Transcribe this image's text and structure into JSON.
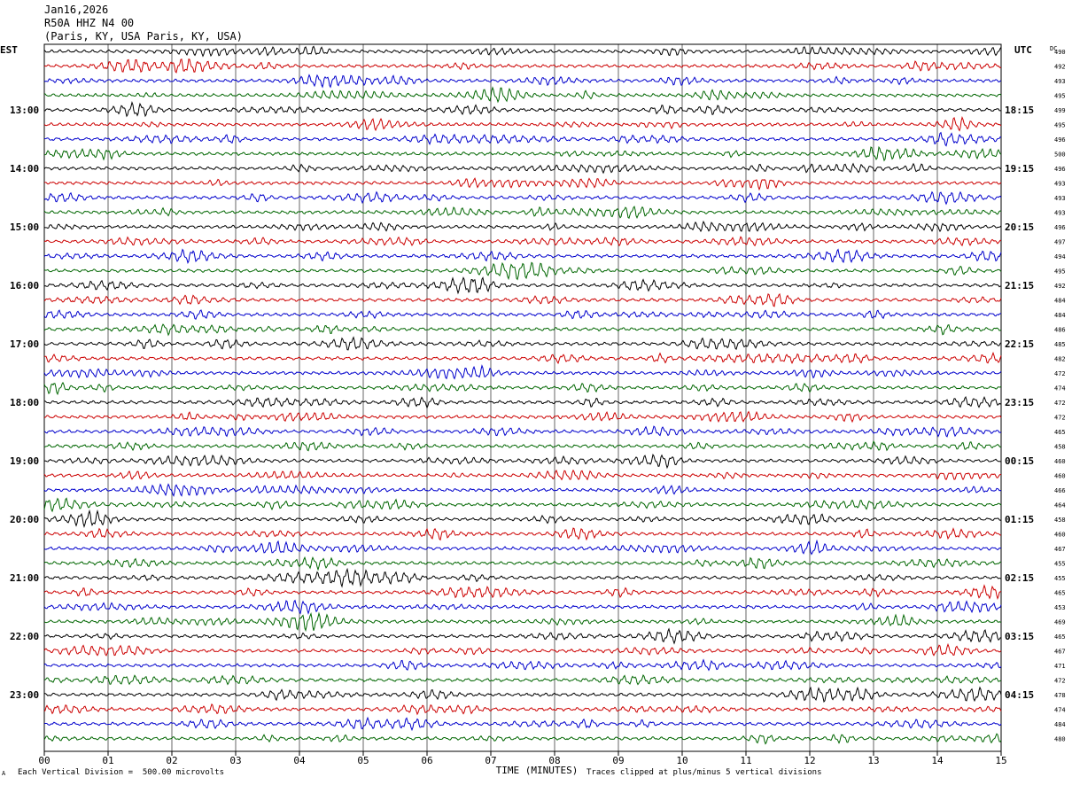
{
  "header": {
    "date": "Jan16,2026",
    "station": "R50A HHZ N4 00",
    "location": "(Paris, KY, USA Paris, KY, USA)"
  },
  "chart_data": {
    "type": "line",
    "title": "",
    "left_axis_label": "EST",
    "right_axis_label": "UTC",
    "dc_label": "DC",
    "xlabel": "TIME (MINUTES)",
    "xlim": [
      0,
      15
    ],
    "x_ticks": [
      "00",
      "01",
      "02",
      "03",
      "04",
      "05",
      "06",
      "07",
      "08",
      "09",
      "10",
      "11",
      "12",
      "13",
      "14",
      "15"
    ],
    "rows_per_hour": 4,
    "trace_colors": [
      "#000000",
      "#cc0000",
      "#0000cc",
      "#006600"
    ],
    "left_times": [
      {
        "row": 4,
        "label": "13:00"
      },
      {
        "row": 8,
        "label": "14:00"
      },
      {
        "row": 12,
        "label": "15:00"
      },
      {
        "row": 16,
        "label": "16:00"
      },
      {
        "row": 20,
        "label": "17:00"
      },
      {
        "row": 24,
        "label": "18:00"
      },
      {
        "row": 28,
        "label": "19:00"
      },
      {
        "row": 32,
        "label": "20:00"
      },
      {
        "row": 36,
        "label": "21:00"
      },
      {
        "row": 40,
        "label": "22:00"
      },
      {
        "row": 44,
        "label": "23:00"
      }
    ],
    "right_times": [
      {
        "row": 4,
        "label": "18:15"
      },
      {
        "row": 8,
        "label": "19:15"
      },
      {
        "row": 12,
        "label": "20:15"
      },
      {
        "row": 16,
        "label": "21:15"
      },
      {
        "row": 20,
        "label": "22:15"
      },
      {
        "row": 24,
        "label": "23:15"
      },
      {
        "row": 28,
        "label": "00:15"
      },
      {
        "row": 32,
        "label": "01:15"
      },
      {
        "row": 36,
        "label": "02:15"
      },
      {
        "row": 40,
        "label": "03:15"
      },
      {
        "row": 44,
        "label": "04:15"
      }
    ],
    "dc_offsets": [
      490,
      492,
      493,
      495,
      499,
      495,
      496,
      500,
      496,
      493,
      493,
      493,
      496,
      497,
      494,
      495,
      492,
      484,
      484,
      486,
      485,
      482,
      472,
      474,
      472,
      472,
      465,
      458,
      460,
      460,
      466,
      464,
      458,
      460,
      467,
      455,
      455,
      465,
      453,
      469,
      465,
      467,
      471,
      472,
      478,
      474,
      484,
      480
    ]
  },
  "footer": {
    "scale_note": "Each Vertical Division =  500.00 microvolts",
    "clip_note": "Traces clipped at plus/minus 5 vertical divisions",
    "corner_mark": "A"
  }
}
